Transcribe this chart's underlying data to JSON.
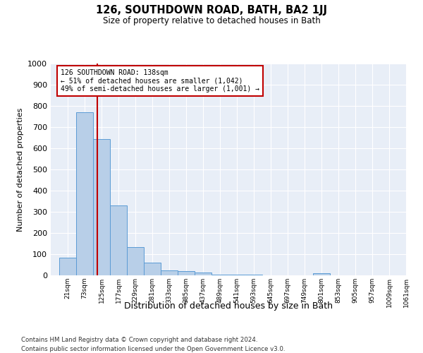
{
  "title1": "126, SOUTHDOWN ROAD, BATH, BA2 1JJ",
  "title2": "Size of property relative to detached houses in Bath",
  "xlabel": "Distribution of detached houses by size in Bath",
  "ylabel": "Number of detached properties",
  "annotation_title": "126 SOUTHDOWN ROAD: 138sqm",
  "annotation_line1": "← 51% of detached houses are smaller (1,042)",
  "annotation_line2": "49% of semi-detached houses are larger (1,001) →",
  "footnote1": "Contains HM Land Registry data © Crown copyright and database right 2024.",
  "footnote2": "Contains public sector information licensed under the Open Government Licence v3.0.",
  "bar_edges": [
    21,
    73,
    125,
    177,
    229,
    281,
    333,
    385,
    437,
    489,
    541,
    593,
    645,
    697,
    749,
    801,
    853,
    905,
    957,
    1009,
    1061
  ],
  "bar_heights": [
    83,
    770,
    645,
    330,
    133,
    60,
    25,
    20,
    15,
    5,
    3,
    2,
    1,
    1,
    1,
    10,
    1,
    1,
    1,
    1,
    0
  ],
  "property_size": 138,
  "bar_fill_color": "#b8cfe8",
  "bar_edge_color": "#5b9bd5",
  "vline_color": "#c00000",
  "annotation_box_color": "#c00000",
  "background_color": "#e8eef7",
  "ylim": [
    0,
    1000
  ],
  "yticks": [
    0,
    100,
    200,
    300,
    400,
    500,
    600,
    700,
    800,
    900,
    1000
  ],
  "tick_labels": [
    "21sqm",
    "73sqm",
    "125sqm",
    "177sqm",
    "229sqm",
    "281sqm",
    "333sqm",
    "385sqm",
    "437sqm",
    "489sqm",
    "541sqm",
    "593sqm",
    "645sqm",
    "697sqm",
    "749sqm",
    "801sqm",
    "853sqm",
    "905sqm",
    "957sqm",
    "1009sqm",
    "1061sqm"
  ]
}
